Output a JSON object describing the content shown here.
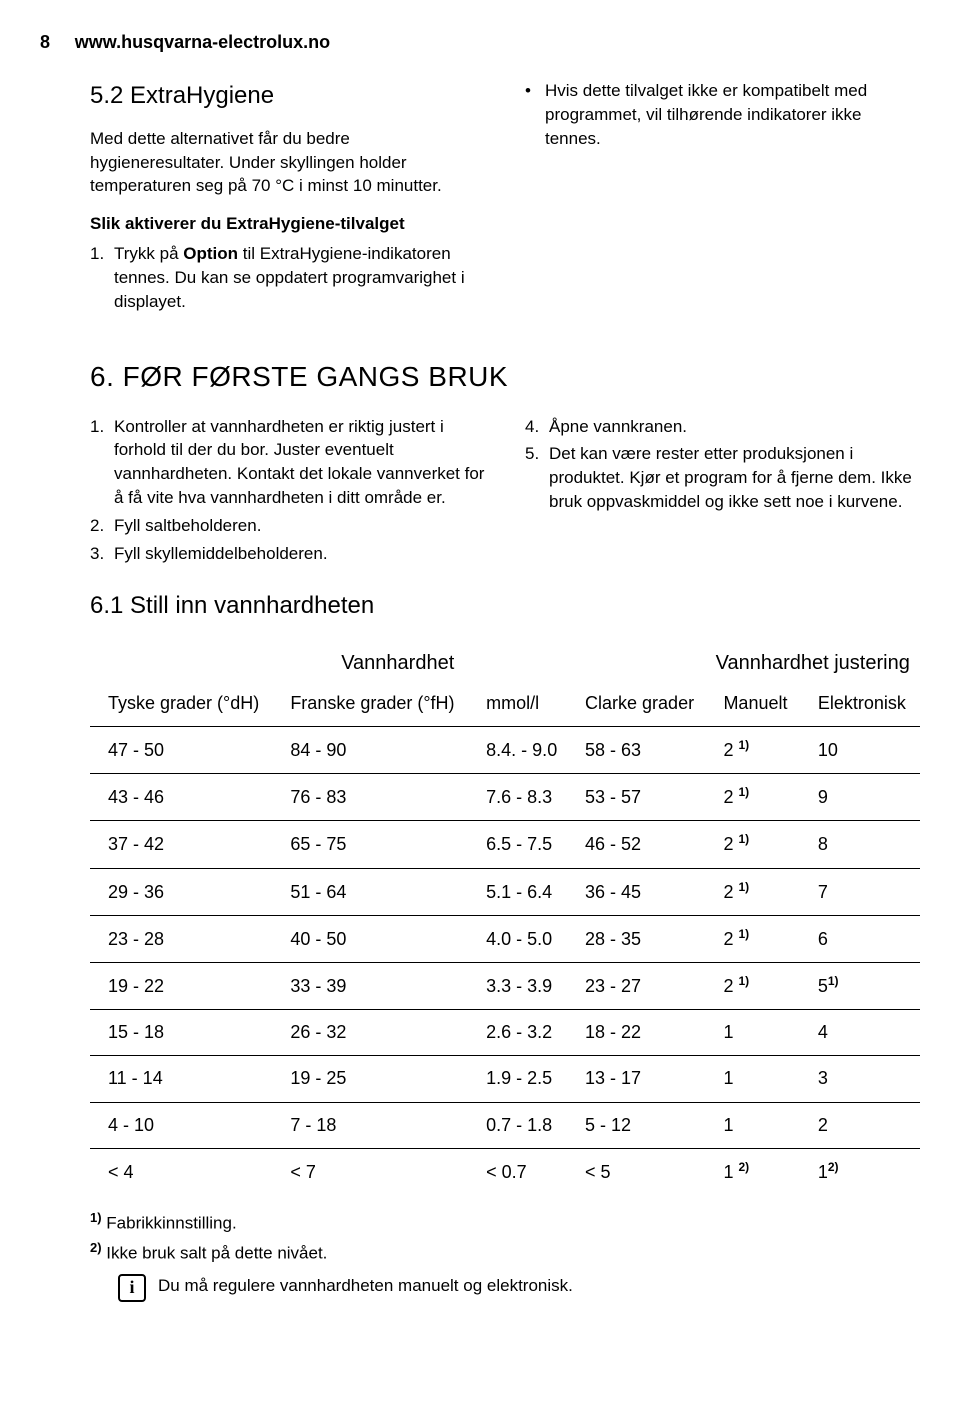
{
  "header": {
    "page_number": "8",
    "url": "www.husqvarna-electrolux.no"
  },
  "section52": {
    "title": "5.2 ExtraHygiene",
    "intro": "Med dette alternativet får du bedre hygieneresultater. Under skyllingen holder temperaturen seg på 70 °C i minst 10 minutter.",
    "subhead": "Slik aktiverer du ExtraHygiene-tilvalget",
    "step1_prefix": "Trykk på ",
    "step1_bold": "Option",
    "step1_suffix": " til ExtraHygiene-indikatoren tennes. Du kan se oppdatert programvarighet i displayet.",
    "bullet1": "Hvis dette tilvalget ikke er kompatibelt med programmet, vil tilhørende indikatorer ikke tennes."
  },
  "section6": {
    "title": "6. FØR FØRSTE GANGS BRUK",
    "left": {
      "1": "Kontroller at vannhardheten er riktig justert i forhold til der du bor. Juster eventuelt vannhardheten. Kontakt det lokale vannverket for å få vite hva vannhardheten i ditt område er.",
      "2": "Fyll saltbeholderen.",
      "3": "Fyll skyllemiddelbeholderen."
    },
    "right": {
      "4": "Åpne vannkranen.",
      "5": "Det kan være rester etter produksjonen i produktet. Kjør et program for å fjerne dem. Ikke bruk oppvaskmiddel og ikke sett noe i kurvene."
    }
  },
  "section61": {
    "title": "6.1 Still inn vannhardheten"
  },
  "table": {
    "group_header1": "Vannhardhet",
    "group_header2": "Vannhardhet justering",
    "cols": {
      "c1": "Tyske grader (°dH)",
      "c2": "Franske grader (°fH)",
      "c3": "mmol/l",
      "c4": "Clarke grader",
      "c5": "Manuelt",
      "c6": "Elektronisk"
    },
    "rows": [
      {
        "c1": "47 - 50",
        "c2": "84 - 90",
        "c3": "8.4. - 9.0",
        "c4": "58 - 63",
        "c5": "2",
        "c5sup": "1)",
        "c6": "10",
        "c6sup": ""
      },
      {
        "c1": "43 - 46",
        "c2": "76 - 83",
        "c3": "7.6 - 8.3",
        "c4": "53 - 57",
        "c5": "2",
        "c5sup": "1)",
        "c6": "9",
        "c6sup": ""
      },
      {
        "c1": "37 - 42",
        "c2": "65 - 75",
        "c3": "6.5 - 7.5",
        "c4": "46 - 52",
        "c5": "2",
        "c5sup": "1)",
        "c6": "8",
        "c6sup": ""
      },
      {
        "c1": "29 - 36",
        "c2": "51 - 64",
        "c3": "5.1 - 6.4",
        "c4": "36 - 45",
        "c5": "2",
        "c5sup": "1)",
        "c6": "7",
        "c6sup": ""
      },
      {
        "c1": "23 - 28",
        "c2": "40 - 50",
        "c3": "4.0 - 5.0",
        "c4": "28 - 35",
        "c5": "2",
        "c5sup": "1)",
        "c6": "6",
        "c6sup": ""
      },
      {
        "c1": "19 - 22",
        "c2": "33 - 39",
        "c3": "3.3 - 3.9",
        "c4": "23 - 27",
        "c5": "2",
        "c5sup": "1)",
        "c6": "5",
        "c6sup": "1)"
      },
      {
        "c1": "15 - 18",
        "c2": "26 - 32",
        "c3": "2.6 - 3.2",
        "c4": "18 - 22",
        "c5": "1",
        "c5sup": "",
        "c6": "4",
        "c6sup": ""
      },
      {
        "c1": "11 - 14",
        "c2": "19 - 25",
        "c3": "1.9 - 2.5",
        "c4": "13 - 17",
        "c5": "1",
        "c5sup": "",
        "c6": "3",
        "c6sup": ""
      },
      {
        "c1": "4 - 10",
        "c2": "7 - 18",
        "c3": "0.7 - 1.8",
        "c4": "5 - 12",
        "c5": "1",
        "c5sup": "",
        "c6": "2",
        "c6sup": ""
      },
      {
        "c1": "< 4",
        "c2": "< 7",
        "c3": "< 0.7",
        "c4": "< 5",
        "c5": "1",
        "c5sup": "2)",
        "c6": "1",
        "c6sup": "2)"
      }
    ]
  },
  "footnotes": {
    "fn1_num": "1)",
    "fn1": " Fabrikkinnstilling.",
    "fn2_num": "2)",
    "fn2": " Ikke bruk salt på dette nivået.",
    "info": "Du må regulere vannhardheten manuelt og elektronisk."
  }
}
